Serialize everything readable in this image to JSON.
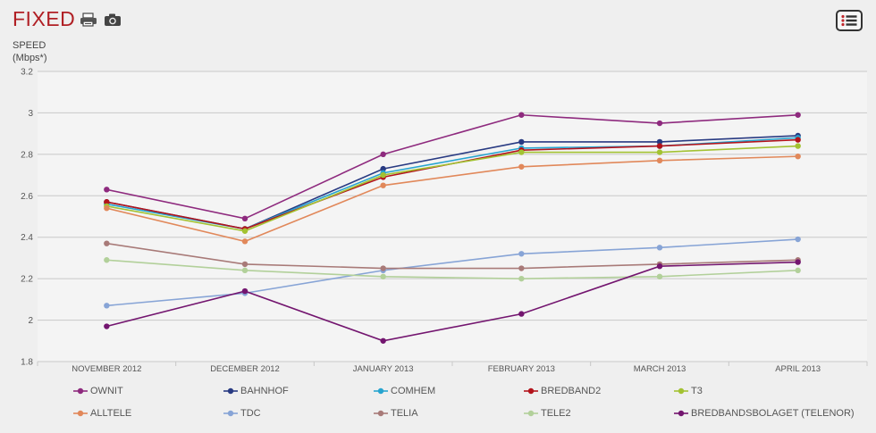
{
  "header": {
    "title": "FIXED",
    "icons": [
      "print-icon",
      "camera-icon",
      "menu-list-icon"
    ]
  },
  "chart_data": {
    "type": "line",
    "title": "FIXED",
    "ylabel": "SPEED\n(Mbps*)",
    "xlabel": "",
    "ylim": [
      1.8,
      3.2
    ],
    "yticks": [
      1.8,
      2,
      2.2,
      2.4,
      2.6,
      2.8,
      3,
      3.2
    ],
    "grid": true,
    "legend_position": "bottom",
    "categories": [
      "NOVEMBER 2012",
      "DECEMBER 2012",
      "JANUARY 2013",
      "FEBRUARY 2013",
      "MARCH 2013",
      "APRIL 2013"
    ],
    "series": [
      {
        "name": "OWNIT",
        "color": "#8e2a7e",
        "values": [
          2.63,
          2.49,
          2.8,
          2.99,
          2.95,
          2.99
        ]
      },
      {
        "name": "BAHNHOF",
        "color": "#283a82",
        "values": [
          2.57,
          2.44,
          2.73,
          2.86,
          2.86,
          2.89
        ]
      },
      {
        "name": "COMHEM",
        "color": "#27a4cf",
        "values": [
          2.56,
          2.44,
          2.71,
          2.83,
          2.84,
          2.88
        ]
      },
      {
        "name": "BREDBAND2",
        "color": "#b3131b",
        "values": [
          2.57,
          2.44,
          2.69,
          2.82,
          2.84,
          2.87
        ]
      },
      {
        "name": "T3",
        "color": "#a3c232",
        "values": [
          2.55,
          2.43,
          2.7,
          2.81,
          2.81,
          2.84
        ]
      },
      {
        "name": "ALLTELE",
        "color": "#e1885a",
        "values": [
          2.54,
          2.38,
          2.65,
          2.74,
          2.77,
          2.79
        ]
      },
      {
        "name": "TDC",
        "color": "#87a4d6",
        "values": [
          2.07,
          2.13,
          2.24,
          2.32,
          2.35,
          2.39
        ]
      },
      {
        "name": "TELIA",
        "color": "#a87a78",
        "values": [
          2.37,
          2.27,
          2.25,
          2.25,
          2.27,
          2.29
        ]
      },
      {
        "name": "TELE2",
        "color": "#b2d09a",
        "values": [
          2.29,
          2.24,
          2.21,
          2.2,
          2.21,
          2.24
        ]
      },
      {
        "name": "BREDBANDSBOLAGET (TELENOR)",
        "color": "#73156f",
        "values": [
          1.97,
          2.14,
          1.9,
          2.03,
          2.26,
          2.28
        ]
      }
    ]
  }
}
